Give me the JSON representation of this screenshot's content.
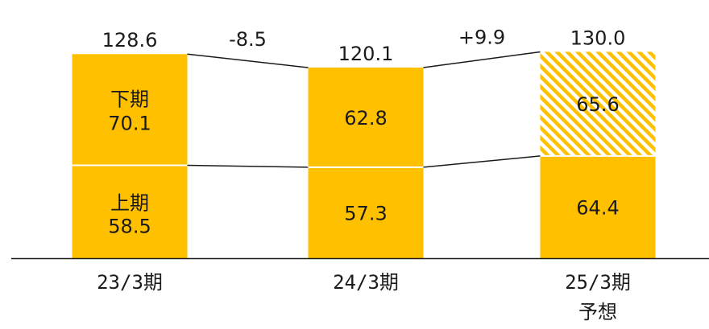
{
  "chart_data": {
    "type": "bar",
    "stacked": true,
    "categories": [
      "23/3期",
      "24/3期",
      "25/3期"
    ],
    "category_sublabels": [
      "",
      "",
      "予想"
    ],
    "series": [
      {
        "name": "上期",
        "values": [
          58.5,
          57.3,
          64.4
        ]
      },
      {
        "name": "下期",
        "values": [
          70.1,
          62.8,
          65.6
        ]
      }
    ],
    "totals": [
      128.6,
      120.1,
      130.0
    ],
    "total_labels": [
      "128.6",
      "120.1",
      "130.0"
    ],
    "segment_labels": {
      "lower": [
        "58.5",
        "57.3",
        "64.4"
      ],
      "upper": [
        "70.1",
        "62.8",
        "65.6"
      ]
    },
    "inline_series_names": {
      "lower": "上期",
      "upper": "下期",
      "shown_on_bar": 0
    },
    "changes": [
      {
        "from": 0,
        "to": 1,
        "label": "-8.5",
        "color": "#ff0000"
      },
      {
        "from": 1,
        "to": 2,
        "label": "+9.9",
        "color": "#1a1a1a"
      }
    ],
    "forecast_index": 2,
    "bar_color": "#ffc000",
    "forecast_hatch_color": "#ffc000",
    "ylim": [
      0,
      140
    ],
    "grid": false,
    "legend": "none"
  }
}
